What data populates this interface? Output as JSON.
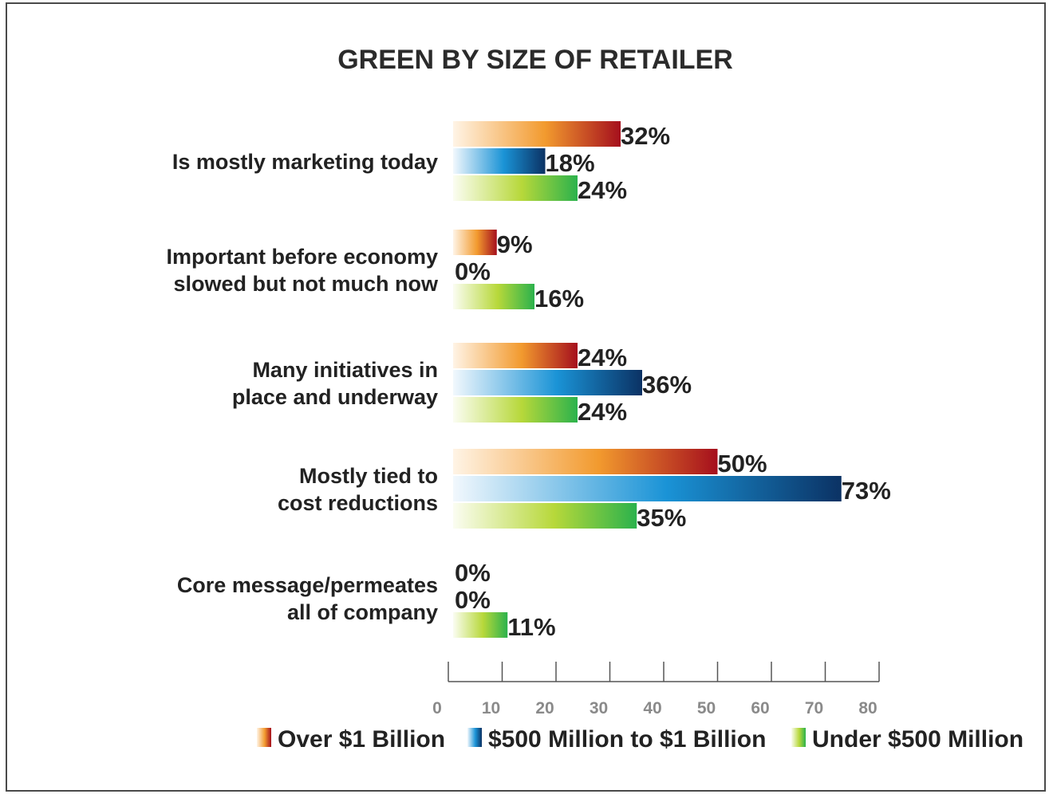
{
  "chart_data": {
    "type": "bar",
    "orientation": "horizontal",
    "title": "GREEN BY SIZE OF RETAILER",
    "categories": [
      [
        "Is mostly marketing today"
      ],
      [
        "Important before economy",
        "slowed but not much now"
      ],
      [
        "Many initiatives in",
        "place and underway"
      ],
      [
        "Mostly tied to",
        "cost reductions"
      ],
      [
        "Core message/permeates",
        "all of company"
      ]
    ],
    "series": [
      {
        "name": "Over $1 Billion",
        "values": [
          32,
          9,
          24,
          50,
          0
        ],
        "labels": [
          "32%",
          "9%",
          "24%",
          "50%",
          "0%"
        ],
        "colors": [
          "#fff4e6",
          "#f29a2e",
          "#a50f1d"
        ]
      },
      {
        "name": "$500 Million to $1 Billion",
        "values": [
          18,
          0,
          36,
          73,
          0
        ],
        "labels": [
          "18%",
          "0%",
          "36%",
          "73%",
          "0%"
        ],
        "colors": [
          "#f2f8fd",
          "#1a93d6",
          "#0b3264"
        ]
      },
      {
        "name": "Under $500 Million",
        "values": [
          24,
          16,
          24,
          35,
          11
        ],
        "labels": [
          "24%",
          "16%",
          "24%",
          "35%",
          "11%"
        ],
        "colors": [
          "#fbfdf2",
          "#b7d83a",
          "#2bb24c"
        ]
      }
    ],
    "xlim": [
      0,
      80
    ],
    "xticks": [
      "0",
      "10",
      "20",
      "30",
      "40",
      "50",
      "60",
      "70",
      "80"
    ],
    "grid": false,
    "legend_position": "bottom"
  }
}
